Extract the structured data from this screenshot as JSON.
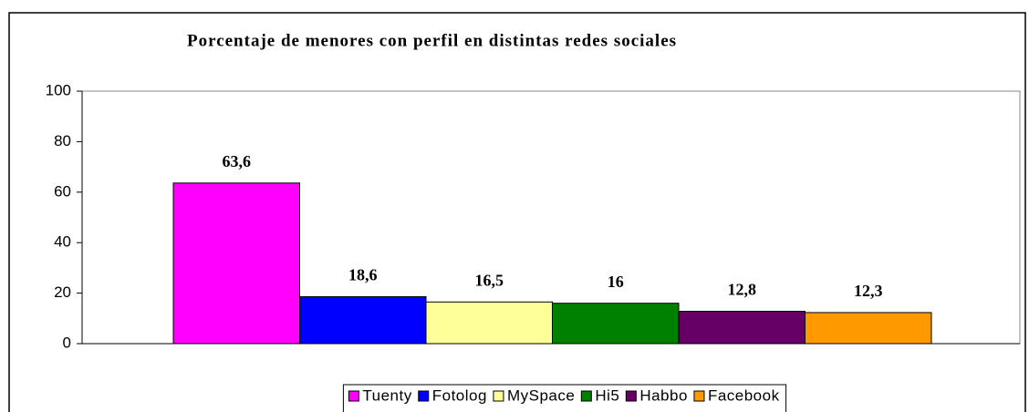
{
  "chart_data": {
    "type": "bar",
    "title": "Porcentaje de menores con perfil en distintas redes sociales",
    "series": [
      {
        "name": "Tuenty",
        "color": "#ff00ff",
        "values": [
          63.6
        ],
        "value_labels": [
          "63,6"
        ]
      },
      {
        "name": "Fotolog",
        "color": "#0000ff",
        "values": [
          18.6
        ],
        "value_labels": [
          "18,6"
        ]
      },
      {
        "name": "MySpace",
        "color": "#ffff99",
        "values": [
          16.5
        ],
        "value_labels": [
          "16,5"
        ]
      },
      {
        "name": "Hi5",
        "color": "#008000",
        "values": [
          16
        ],
        "value_labels": [
          "16"
        ]
      },
      {
        "name": "Habbo",
        "color": "#660066",
        "values": [
          12.8
        ],
        "value_labels": [
          "12,8"
        ]
      },
      {
        "name": "Facebook",
        "color": "#ff9900",
        "values": [
          12.3
        ],
        "value_labels": [
          "12,3"
        ]
      }
    ],
    "ylim": [
      0,
      100
    ],
    "yticks": [
      0,
      20,
      40,
      60,
      80,
      100
    ],
    "legend": "bottom"
  }
}
